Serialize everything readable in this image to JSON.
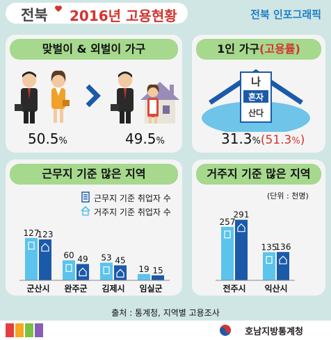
{
  "header": {
    "brand": "전북",
    "title": "2016년 고용현황",
    "graphic_label": "전북 인포그래픽"
  },
  "couples": {
    "title": "맞벌이 & 외벌이 가구",
    "dual_pct": "50.5",
    "single_pct": "49.5",
    "unit": "%"
  },
  "single_household": {
    "title": "1인 가구",
    "title_rate": "(고용률)",
    "sign_top": "나",
    "sign_mid": "혼자",
    "sign_bot": "산다",
    "share": "31.3",
    "rate": "(51.3",
    "unit": "%",
    "close": ")"
  },
  "work_panel": {
    "title": "근무지 기준 많은 지역",
    "legend_work": "근무지 기준 취업자 수",
    "legend_home": "거주지 기준 취업자 수"
  },
  "home_panel": {
    "title": "거주지 기준 많은 지역",
    "unit_note": "(단위 : 천명)"
  },
  "colors": {
    "work_bar": "#5bc3ec",
    "home_bar": "#1b5aa8",
    "header_green": "#a6d88e",
    "accent_red": "#d2342f"
  },
  "chart_data": [
    {
      "type": "bar",
      "title": "근무지 기준 많은 지역",
      "categories": [
        "군산시",
        "완주군",
        "김제시",
        "임실군"
      ],
      "series": [
        {
          "name": "근무지 기준 취업자 수",
          "values": [
            127,
            60,
            53,
            19
          ]
        },
        {
          "name": "거주지 기준 취업자 수",
          "values": [
            123,
            49,
            45,
            15
          ]
        }
      ]
    },
    {
      "type": "bar",
      "title": "거주지 기준 많은 지역",
      "categories": [
        "전주시",
        "익산시"
      ],
      "series": [
        {
          "name": "근무지 기준 취업자 수",
          "values": [
            257,
            135
          ]
        },
        {
          "name": "거주지 기준 취업자 수",
          "values": [
            291,
            136
          ]
        }
      ]
    }
  ],
  "source": "출처 : 통계청, 지역별 고용조사",
  "footer": {
    "agency": "호남지방통계청"
  }
}
